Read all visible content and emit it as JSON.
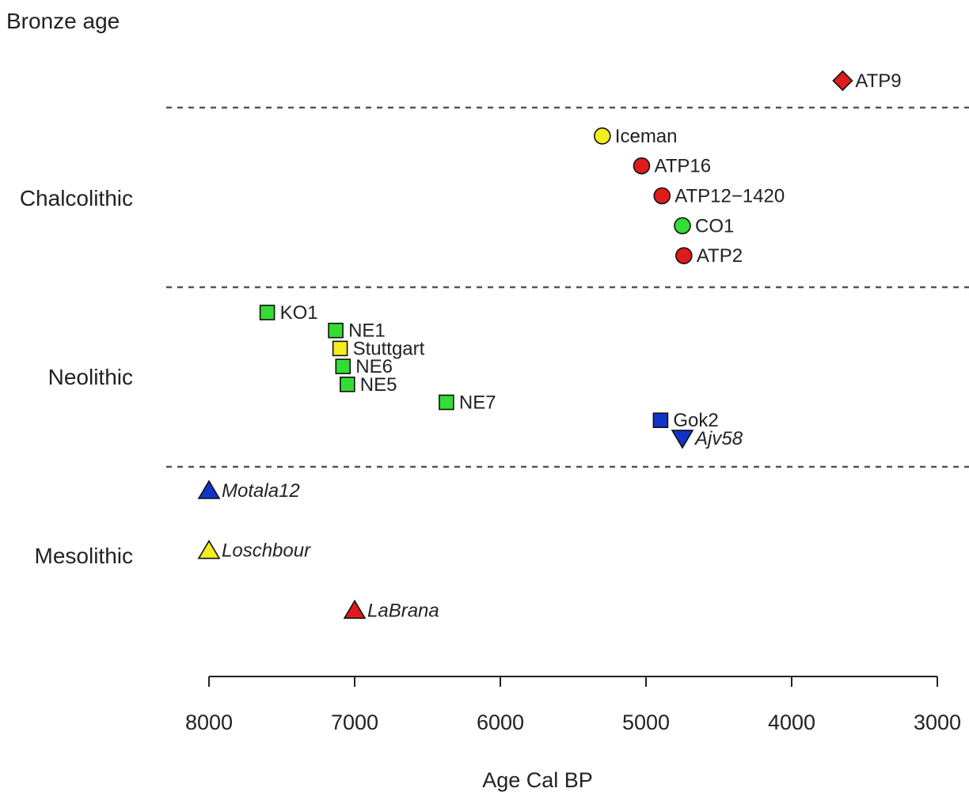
{
  "chart_data": {
    "type": "scatter",
    "xlabel": "Age Cal BP",
    "xlim": [
      8000,
      3000
    ],
    "x_ticks": [
      "8000",
      "7000",
      "6000",
      "5000",
      "4000",
      "3000"
    ],
    "periods": [
      {
        "name": "Bronze age"
      },
      {
        "name": "Chalcolithic"
      },
      {
        "name": "Neolithic"
      },
      {
        "name": "Mesolithic"
      }
    ],
    "points": [
      {
        "label": "ATP9",
        "x": 3650,
        "period": "Bronze age",
        "shape": "diamond",
        "color": "#e01b1b",
        "italic": false
      },
      {
        "label": "Iceman",
        "x": 5300,
        "period": "Chalcolithic",
        "shape": "circle",
        "color": "#f5ee1f",
        "italic": false
      },
      {
        "label": "ATP16",
        "x": 5030,
        "period": "Chalcolithic",
        "shape": "circle",
        "color": "#e01b1b",
        "italic": false
      },
      {
        "label": "ATP12−1420",
        "x": 4890,
        "period": "Chalcolithic",
        "shape": "circle",
        "color": "#e01b1b",
        "italic": false
      },
      {
        "label": "CO1",
        "x": 4750,
        "period": "Chalcolithic",
        "shape": "circle",
        "color": "#33dd33",
        "italic": false
      },
      {
        "label": "ATP2",
        "x": 4740,
        "period": "Chalcolithic",
        "shape": "circle",
        "color": "#e01b1b",
        "italic": false
      },
      {
        "label": "KO1",
        "x": 7600,
        "period": "Neolithic",
        "shape": "square",
        "color": "#33dd33",
        "italic": false
      },
      {
        "label": "NE1",
        "x": 7130,
        "period": "Neolithic",
        "shape": "square",
        "color": "#33dd33",
        "italic": false
      },
      {
        "label": "Stuttgart",
        "x": 7100,
        "period": "Neolithic",
        "shape": "square",
        "color": "#f5ee1f",
        "italic": false
      },
      {
        "label": "NE6",
        "x": 7080,
        "period": "Neolithic",
        "shape": "square",
        "color": "#33dd33",
        "italic": false
      },
      {
        "label": "NE5",
        "x": 7050,
        "period": "Neolithic",
        "shape": "square",
        "color": "#33dd33",
        "italic": false
      },
      {
        "label": "NE7",
        "x": 6370,
        "period": "Neolithic",
        "shape": "square",
        "color": "#33dd33",
        "italic": false
      },
      {
        "label": "Gok2",
        "x": 4900,
        "period": "Neolithic",
        "shape": "square",
        "color": "#1133cc",
        "italic": false
      },
      {
        "label": "Ajv58",
        "x": 4750,
        "period": "Neolithic",
        "shape": "triangle-down",
        "color": "#1133cc",
        "italic": true
      },
      {
        "label": "Motala12",
        "x": 8000,
        "period": "Mesolithic",
        "shape": "triangle-up",
        "color": "#1133cc",
        "italic": true
      },
      {
        "label": "Loschbour",
        "x": 8000,
        "period": "Mesolithic",
        "shape": "triangle-up",
        "color": "#f5ee1f",
        "italic": true
      },
      {
        "label": "LaBrana",
        "x": 7000,
        "period": "Mesolithic",
        "shape": "triangle-up",
        "color": "#e01b1b",
        "italic": true
      }
    ]
  }
}
